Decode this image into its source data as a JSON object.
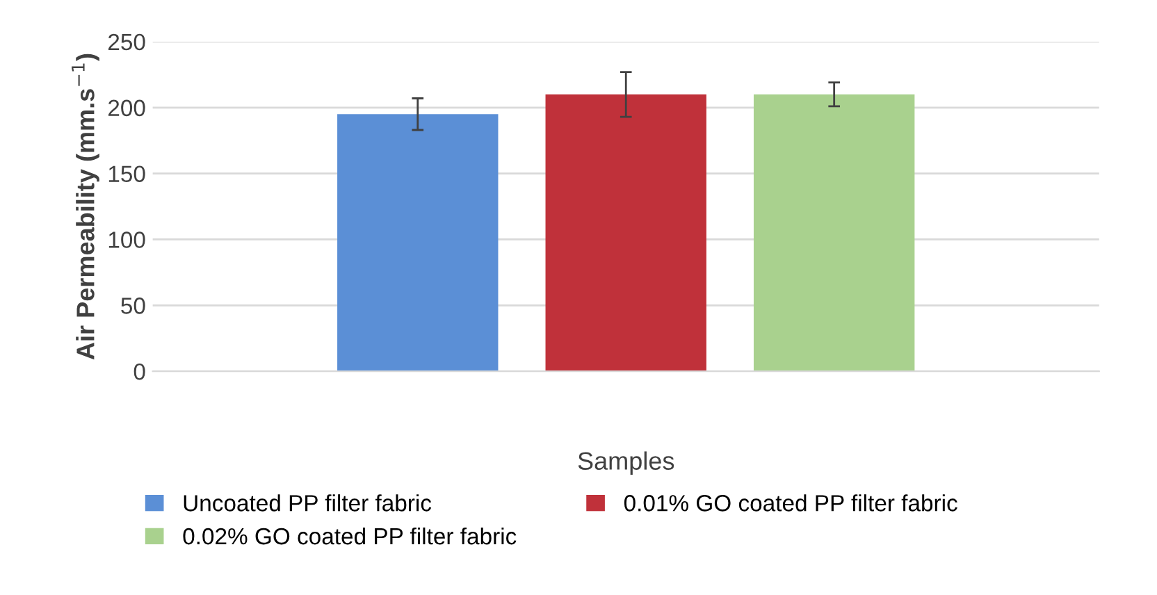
{
  "chart_data": {
    "type": "bar",
    "xlabel": "Samples",
    "ylabel": "Air Permeability (mm.s$^{−1}$)",
    "categories": [
      null
    ],
    "series": [
      {
        "name": "Uncoated PP filter fabric",
        "color": "#5b8fd6",
        "values": [
          195
        ],
        "errors": [
          12
        ]
      },
      {
        "name": "0.01% GO coated PP filter fabric",
        "color": "#c0313a",
        "values": [
          210
        ],
        "errors": [
          17
        ]
      },
      {
        "name": "0.02% GO coated PP filter fabric",
        "color": "#a9d18e",
        "values": [
          210
        ],
        "errors": [
          9
        ]
      }
    ],
    "ylim": [
      0,
      250
    ],
    "yticks": [
      0,
      50,
      100,
      150,
      200,
      250
    ],
    "grid": "y",
    "legend": "bottom"
  }
}
